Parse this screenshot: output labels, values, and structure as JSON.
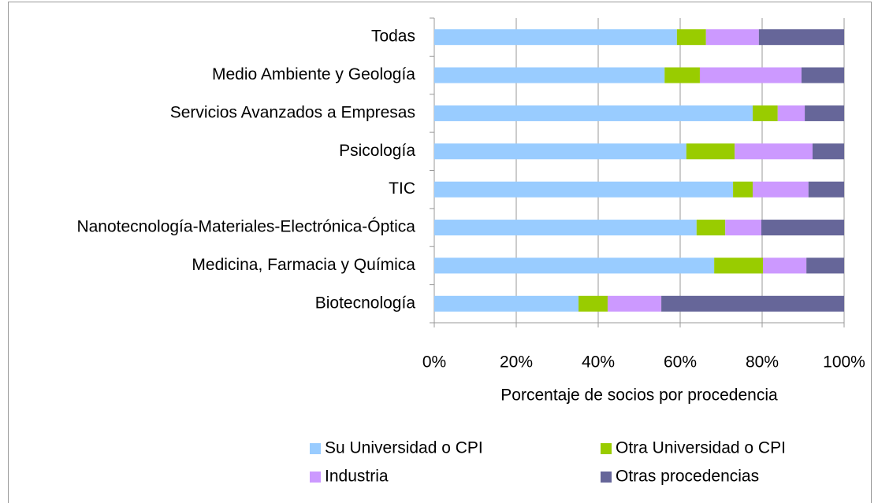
{
  "chart_data": {
    "type": "stacked-bar-horizontal",
    "categories": [
      "Todas",
      "Medio Ambiente y Geología",
      "Servicios Avanzados a Empresas",
      "Psicología",
      "TIC",
      "Nanotecnología-Materiales-Electrónica-Óptica",
      "Medicina, Farmacia y Química",
      "Biotecnología"
    ],
    "series": [
      {
        "name": "Su Universidad o CPI",
        "color": "#99ccff",
        "values": [
          59.2,
          56.2,
          77.7,
          61.5,
          72.9,
          64.0,
          68.3,
          35.2
        ]
      },
      {
        "name": "Otra Universidad o CPI",
        "color": "#99cc00",
        "values": [
          7.1,
          8.6,
          6.1,
          11.8,
          4.8,
          7.0,
          11.9,
          7.1
        ]
      },
      {
        "name": "Industria",
        "color": "#cc99ff",
        "values": [
          12.9,
          24.8,
          6.6,
          19.0,
          13.6,
          8.8,
          10.6,
          13.1
        ]
      },
      {
        "name": "Otras procedencias",
        "color": "#666699",
        "values": [
          20.8,
          10.4,
          9.6,
          7.7,
          8.7,
          20.2,
          9.2,
          44.6
        ]
      }
    ],
    "x_label": "Porcentaje de socios por procedencia",
    "xlim": [
      0,
      100
    ],
    "xticks": [
      {
        "value": 0,
        "label": "0%"
      },
      {
        "value": 20,
        "label": "20%"
      },
      {
        "value": 40,
        "label": "40%"
      },
      {
        "value": 60,
        "label": "60%"
      },
      {
        "value": 80,
        "label": "80%"
      },
      {
        "value": 100,
        "label": "100%"
      }
    ],
    "grid": true,
    "legend": "bottom"
  }
}
